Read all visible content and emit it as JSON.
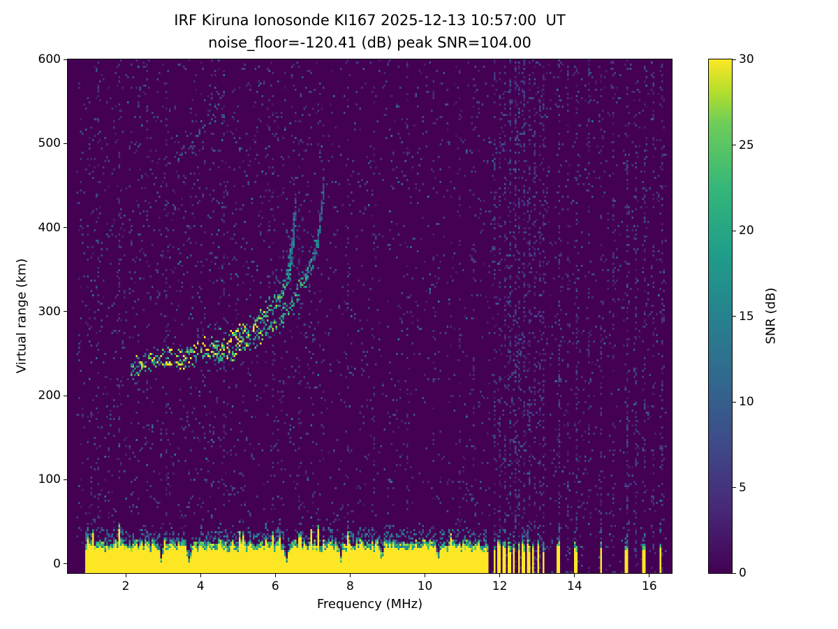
{
  "figure": {
    "title_line1": "IRF Kiruna Ionosonde KI167 2025-12-13 10:57:00  UT",
    "title_line2": "noise_floor=-120.41 (dB) peak SNR=104.00"
  },
  "chart_data": {
    "type": "heatmap",
    "title": "IRF Kiruna Ionosonde KI167 2025-12-13 10:57:00  UT",
    "subtitle": "noise_floor=-120.41 (dB) peak SNR=104.00",
    "station": "IRF Kiruna Ionosonde KI167",
    "timestamp_ut": "2025-12-13 10:57:00",
    "noise_floor_db": -120.41,
    "peak_snr_db": 104.0,
    "xlabel": "Frequency (MHz)",
    "ylabel": "Virtual range (km)",
    "xlim": [
      0.45,
      16.6
    ],
    "ylim": [
      -11,
      600
    ],
    "x_ticks": [
      2,
      4,
      6,
      8,
      10,
      12,
      14,
      16
    ],
    "y_ticks": [
      0,
      100,
      200,
      300,
      400,
      500,
      600
    ],
    "grid": false,
    "legend": null,
    "colorbar": {
      "label": "SNR (dB)",
      "ticks": [
        0,
        5,
        10,
        15,
        20,
        25,
        30
      ],
      "range": [
        0,
        30
      ],
      "colormap": "viridis",
      "stops": [
        [
          0.0,
          68,
          1,
          84
        ],
        [
          0.125,
          72,
          40,
          120
        ],
        [
          0.25,
          62,
          74,
          137
        ],
        [
          0.375,
          49,
          104,
          142
        ],
        [
          0.5,
          38,
          130,
          142
        ],
        [
          0.625,
          31,
          158,
          137
        ],
        [
          0.75,
          53,
          183,
          121
        ],
        [
          0.875,
          109,
          205,
          89
        ],
        [
          0.9375,
          180,
          222,
          44
        ],
        [
          1.0,
          253,
          231,
          37
        ]
      ]
    },
    "data_extent": {
      "freq_mhz": [
        0.7,
        16.45
      ],
      "range_km": [
        -11,
        600
      ]
    },
    "background_snr_db": 0,
    "noise_speckle": {
      "probability": 0.034,
      "probability_below_7mhz": 0.05,
      "snr_db_range": [
        2,
        9
      ]
    },
    "ground_clutter": {
      "freq_start_mhz": 0.9,
      "freq_end_mhz": 11.72,
      "top_km_mean": 25,
      "snr_db": 30,
      "notches_mhz": [
        [
          2.95,
          0.06
        ],
        [
          3.7,
          0.09
        ],
        [
          6.3,
          0.08
        ],
        [
          7.75,
          0.05
        ],
        [
          8.85,
          0.05
        ],
        [
          10.35,
          0.05
        ]
      ]
    },
    "clutter_bars_mhz": [
      [
        11.86,
        0.07
      ],
      [
        11.99,
        0.07
      ],
      [
        12.12,
        0.07
      ],
      [
        12.25,
        0.07
      ],
      [
        12.38,
        0.07
      ],
      [
        12.51,
        0.07
      ],
      [
        12.64,
        0.07
      ],
      [
        12.77,
        0.07
      ],
      [
        12.9,
        0.07
      ],
      [
        13.03,
        0.07
      ],
      [
        13.16,
        0.06
      ],
      [
        13.55,
        0.09
      ],
      [
        14.05,
        0.09
      ],
      [
        14.7,
        0.06
      ],
      [
        15.4,
        0.09
      ],
      [
        15.85,
        0.08
      ],
      [
        16.3,
        0.08
      ]
    ],
    "interference_lines_mhz": [
      [
        1.25,
        0.12
      ],
      [
        1.8,
        0.1
      ],
      [
        2.55,
        0.08
      ],
      [
        3.05,
        0.08
      ],
      [
        4.6,
        0.06
      ],
      [
        5.9,
        0.08
      ],
      [
        6.6,
        0.08
      ],
      [
        7.9,
        0.08
      ],
      [
        8.6,
        0.07
      ],
      [
        9.5,
        0.08
      ],
      [
        10.2,
        0.07
      ],
      [
        10.9,
        0.1
      ],
      [
        11.3,
        0.1
      ],
      [
        11.86,
        0.35
      ],
      [
        11.99,
        0.3
      ],
      [
        12.12,
        0.35
      ],
      [
        12.25,
        0.45
      ],
      [
        12.38,
        0.55
      ],
      [
        12.51,
        0.45
      ],
      [
        12.64,
        0.4
      ],
      [
        12.77,
        0.35
      ],
      [
        12.9,
        0.3
      ],
      [
        13.03,
        0.3
      ],
      [
        13.16,
        0.3
      ],
      [
        13.55,
        0.4
      ],
      [
        13.8,
        0.25
      ],
      [
        14.05,
        0.4
      ],
      [
        14.35,
        0.2
      ],
      [
        14.7,
        0.25
      ],
      [
        15.0,
        0.2
      ],
      [
        15.4,
        0.4
      ],
      [
        15.6,
        0.25
      ],
      [
        15.85,
        0.4
      ],
      [
        16.1,
        0.25
      ],
      [
        16.3,
        0.35
      ]
    ],
    "traces": [
      {
        "name": "F-region echo O-mode",
        "spread_km": 7,
        "density": 4,
        "points": [
          [
            2.15,
            233,
            18
          ],
          [
            2.4,
            238,
            22
          ],
          [
            2.7,
            241,
            24
          ],
          [
            3.0,
            243,
            21
          ],
          [
            3.3,
            245,
            24
          ],
          [
            3.6,
            247,
            22
          ],
          [
            3.9,
            250,
            25
          ],
          [
            4.2,
            254,
            26
          ],
          [
            4.5,
            260,
            27
          ],
          [
            4.8,
            267,
            25
          ],
          [
            5.1,
            275,
            26
          ],
          [
            5.4,
            284,
            24
          ],
          [
            5.7,
            295,
            22
          ],
          [
            6.0,
            310,
            20
          ],
          [
            6.2,
            325,
            18
          ],
          [
            6.35,
            345,
            16
          ],
          [
            6.45,
            370,
            13
          ],
          [
            6.5,
            400,
            11
          ],
          [
            6.55,
            430,
            9
          ]
        ]
      },
      {
        "name": "F-region echo X-mode",
        "spread_km": 6,
        "density": 3,
        "points": [
          [
            4.35,
            243,
            20
          ],
          [
            4.7,
            248,
            22
          ],
          [
            5.0,
            254,
            23
          ],
          [
            5.3,
            261,
            21
          ],
          [
            5.6,
            270,
            21
          ],
          [
            5.9,
            282,
            20
          ],
          [
            6.2,
            296,
            19
          ],
          [
            6.5,
            315,
            18
          ],
          [
            6.8,
            338,
            17
          ],
          [
            7.0,
            360,
            15
          ],
          [
            7.15,
            390,
            12
          ],
          [
            7.25,
            420,
            10
          ],
          [
            7.3,
            455,
            8
          ]
        ]
      },
      {
        "name": "second-hop echo",
        "spread_km": 5,
        "density": 0.7,
        "points": [
          [
            3.15,
            470,
            9
          ],
          [
            3.4,
            483,
            10
          ],
          [
            3.7,
            497,
            10
          ],
          [
            3.95,
            512,
            9
          ],
          [
            4.2,
            528,
            10
          ],
          [
            4.45,
            545,
            9
          ],
          [
            4.65,
            560,
            8
          ]
        ]
      }
    ]
  }
}
